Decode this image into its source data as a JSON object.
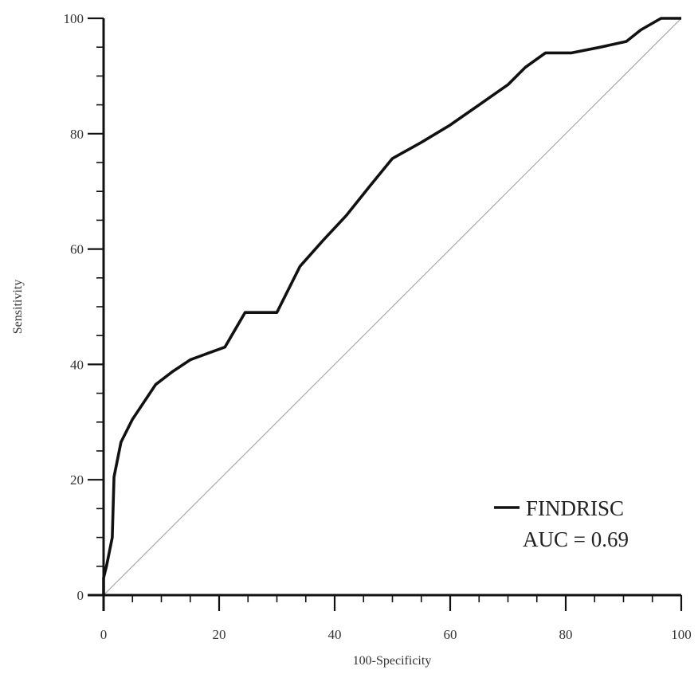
{
  "chart_data": {
    "type": "line",
    "xlabel": "100-Specificity",
    "ylabel": "Sensitivity",
    "xlim": [
      0,
      100
    ],
    "ylim": [
      0,
      100
    ],
    "x_ticks": [
      "0",
      "20",
      "40",
      "60",
      "80",
      "100"
    ],
    "y_ticks": [
      "0",
      "20",
      "40",
      "60",
      "80",
      "100"
    ],
    "grid": false,
    "legend_position": "bottom-right",
    "series": [
      {
        "name": "FINDRISC",
        "color": "#111111",
        "x": [
          0,
          0,
          0.5,
          1.5,
          1.8,
          3,
          5,
          7,
          9,
          12,
          15,
          18,
          21,
          24.5,
          30,
          34,
          38,
          42,
          46,
          50,
          55,
          60,
          65,
          70,
          73,
          76.5,
          81,
          86,
          90.5,
          93,
          96.5,
          98,
          100
        ],
        "y": [
          0,
          3,
          5,
          10,
          20.5,
          26.5,
          30.5,
          33.5,
          36.5,
          38.8,
          40.8,
          41.9,
          43,
          49,
          49,
          57,
          61.5,
          65.8,
          70.8,
          75.7,
          78.5,
          81.5,
          85,
          88.5,
          91.5,
          94,
          94,
          95,
          96,
          98,
          100,
          100,
          100
        ]
      },
      {
        "name": "",
        "color": "#9a9a9a",
        "x": [
          0,
          100
        ],
        "y": [
          0,
          100
        ]
      }
    ],
    "annotations": [
      "AUC = 0.69"
    ]
  }
}
